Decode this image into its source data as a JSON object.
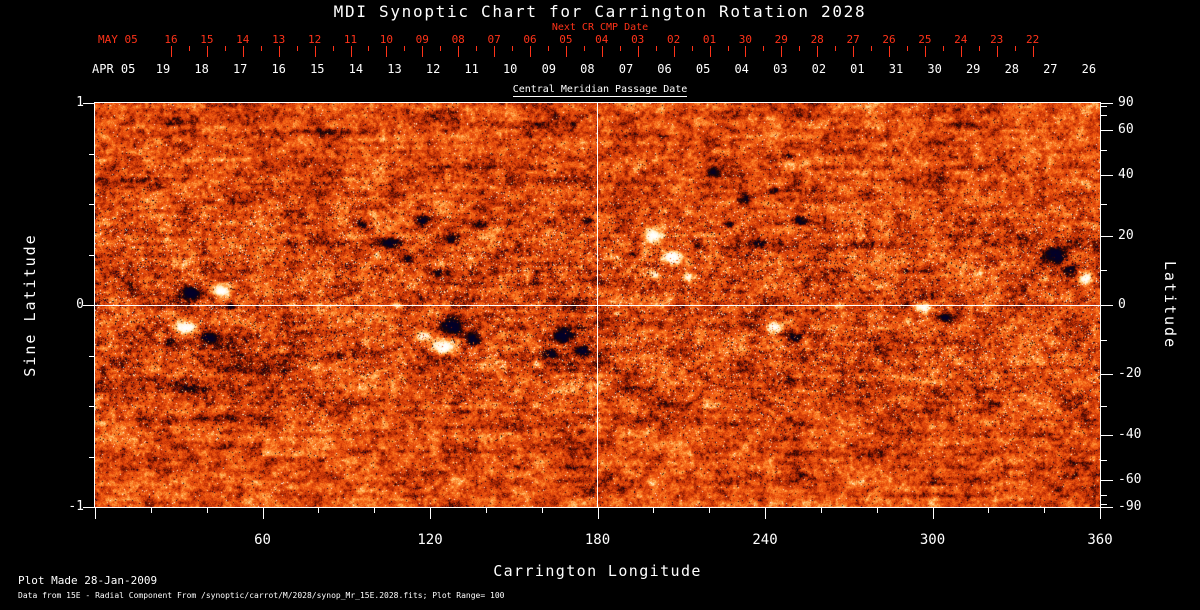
{
  "title": "MDI Synoptic Chart for Carrington Rotation 2028",
  "colors": {
    "background": "#000000",
    "foreground": "#ffffff",
    "accent_red": "#ff3319",
    "magnetogram_base_orange": "#e84a0c"
  },
  "top_axis": {
    "label": "Next CR CMP Date",
    "month": "MAY 05",
    "days": [
      "16",
      "15",
      "14",
      "13",
      "12",
      "11",
      "10",
      "09",
      "08",
      "07",
      "06",
      "05",
      "04",
      "03",
      "02",
      "01",
      "30",
      "29",
      "28",
      "27",
      "26",
      "25",
      "24",
      "23",
      "22"
    ]
  },
  "cmp_axis": {
    "label": "Central Meridian Passage Date",
    "month": "APR 05",
    "days": [
      "19",
      "18",
      "17",
      "16",
      "15",
      "14",
      "13",
      "12",
      "11",
      "10",
      "09",
      "08",
      "07",
      "06",
      "05",
      "04",
      "03",
      "02",
      "01",
      "31",
      "30",
      "29",
      "28",
      "27",
      "26"
    ]
  },
  "left_axis": {
    "label": "Sine Latitude",
    "ticks": [
      "1",
      "0",
      "-1"
    ]
  },
  "right_axis": {
    "label": "Latitude",
    "ticks": [
      "90",
      "60",
      "40",
      "20",
      "0",
      "-20",
      "-40",
      "-60",
      "-90"
    ]
  },
  "bottom_axis": {
    "label": "Carrington Longitude",
    "ticks": [
      "60",
      "120",
      "180",
      "240",
      "300",
      "360"
    ]
  },
  "footer": {
    "line1": "Plot Made 28-Jan-2009",
    "line2": "Data from 15E - Radial Component From /synoptic/carrot/M/2028/synop_Mr_15E.2028.fits; Plot Range=  100"
  },
  "chart_data": {
    "type": "heatmap",
    "title": "MDI Synoptic Chart for Carrington Rotation 2028",
    "description": "Solar synoptic magnetogram (radial magnetic field) for Carrington rotation 2028: mottled orange background with dark (negative polarity) and bright white (positive polarity) active regions concentrated in the activity belts",
    "xlabel": "Carrington Longitude",
    "xlim": [
      0,
      360
    ],
    "x_ticks": [
      60,
      120,
      180,
      240,
      300,
      360
    ],
    "ylabel_left": "Sine Latitude",
    "ylim_sine_latitude": [
      -1,
      1
    ],
    "y_ticks_sine_latitude": [
      1,
      0,
      -1
    ],
    "ylabel_right": "Latitude",
    "y_ticks_latitude_deg": [
      90,
      60,
      40,
      20,
      0,
      -20,
      -40,
      -60,
      -90
    ],
    "plot_range_gauss": 100,
    "grid": false,
    "legend": "none",
    "reference_lines": {
      "horizontal_at_sine_latitude": 0,
      "vertical_at_longitude": 180
    },
    "colormap": {
      "strong_negative": "#0a0220",
      "near_zero": "#e84a0c",
      "strong_positive": "#ffffff"
    },
    "top_axis_days_may_2005": [
      "16",
      "15",
      "14",
      "13",
      "12",
      "11",
      "10",
      "09",
      "08",
      "07",
      "06",
      "05",
      "04",
      "03",
      "02",
      "01",
      "30",
      "29",
      "28",
      "27",
      "26",
      "25",
      "24",
      "23",
      "22"
    ],
    "cmp_days_apr_2005": [
      "19",
      "18",
      "17",
      "16",
      "15",
      "14",
      "13",
      "12",
      "11",
      "10",
      "09",
      "08",
      "07",
      "06",
      "05",
      "04",
      "03",
      "02",
      "01",
      "31",
      "30",
      "29",
      "28",
      "27",
      "26"
    ],
    "active_regions_approx": [
      {
        "longitude": 40,
        "sine_latitude": 0.04,
        "polarity": "bipolar dark+white"
      },
      {
        "longitude": 36,
        "sine_latitude": -0.13,
        "polarity": "bipolar white+dark"
      },
      {
        "longitude": 118,
        "sine_latitude": 0.35,
        "polarity": "scattered dark"
      },
      {
        "longitude": 128,
        "sine_latitude": -0.14,
        "polarity": "strong bipolar dark+white"
      },
      {
        "longitude": 169,
        "sine_latitude": -0.17,
        "polarity": "dark cluster"
      },
      {
        "longitude": 205,
        "sine_latitude": 0.24,
        "polarity": "white cluster"
      },
      {
        "longitude": 243,
        "sine_latitude": -0.13,
        "polarity": "bipolar white+dark"
      },
      {
        "longitude": 299,
        "sine_latitude": -0.04,
        "polarity": "bipolar white+dark"
      },
      {
        "longitude": 346,
        "sine_latitude": 0.22,
        "polarity": "strong bipolar dark+white"
      }
    ]
  }
}
